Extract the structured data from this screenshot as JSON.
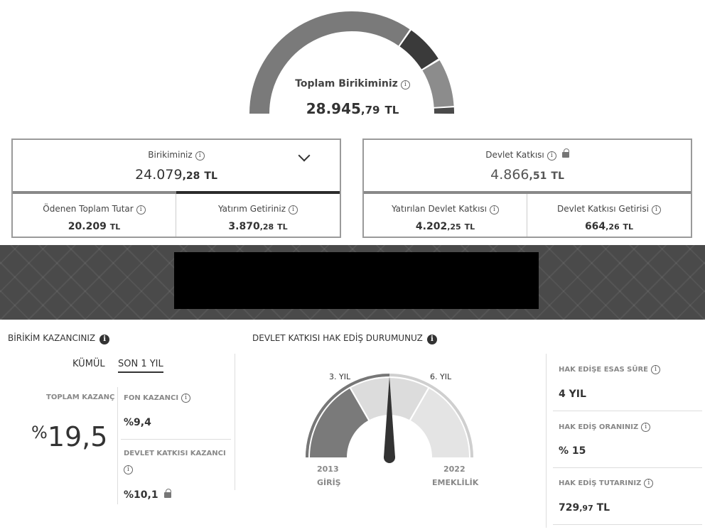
{
  "summary": {
    "total_label": "Toplam Birikiminiz",
    "total_int": "28.945",
    "total_dec": ",79",
    "currency": "TL",
    "gauge_segment_colors": [
      "#7a7a7a",
      "#3a3a3a",
      "#8c8c8c",
      "#4a4a4a"
    ]
  },
  "birikim_card": {
    "label": "Birikiminiz",
    "value_int": "24.079",
    "value_dec": ",28",
    "currency": "TL",
    "expand_icon": "chevron-down-icon",
    "left": {
      "label": "Ödenen Toplam Tutar",
      "value_int": "20.209",
      "value_dec": "",
      "currency": "TL"
    },
    "right": {
      "label": "Yatırım Getiriniz",
      "value_int": "3.870",
      "value_dec": ",28",
      "currency": "TL"
    }
  },
  "devlet_card": {
    "label": "Devlet Katkısı",
    "value_int": "4.866",
    "value_dec": ",51",
    "currency": "TL",
    "lock_icon": "lock-icon",
    "left": {
      "label": "Yatırılan Devlet Katkısı",
      "value_int": "4.202",
      "value_dec": ",25",
      "currency": "TL"
    },
    "right": {
      "label": "Devlet Katkısı Getirisi",
      "value_int": "664",
      "value_dec": ",26",
      "currency": "TL"
    }
  },
  "kazanc": {
    "title": "BİRİKİM KAZANCINIZ",
    "tab_cumulative": "KÜMÜL",
    "tab_last_year": "SON 1 YIL",
    "active_tab": "SON 1 YIL",
    "total_label": "TOPLAM KAZANÇ",
    "percent_symbol": "%",
    "total_value": "19,5",
    "fon_label": "FON KAZANCI",
    "fon_value": "%9,4",
    "devlet_label": "DEVLET KATKISI KAZANCI",
    "devlet_value": "%10,1"
  },
  "hak_edis": {
    "title": "DEVLET KATKISI HAK EDİŞ DURUMUNUZ",
    "mark_3": "3. YIL",
    "mark_6": "6. YIL",
    "start_year": "2013",
    "start_label": "GİRİŞ",
    "end_year": "2022",
    "end_label": "EMEKLİLİK",
    "needle_years_elapsed": 3,
    "years_total": 9,
    "sure_label": "HAK EDİŞE ESAS SÜRE",
    "sure_value": "4 YIL",
    "oran_label": "HAK EDİŞ ORANINIZ",
    "oran_value": "% 15",
    "tutar_label": "HAK EDİŞ TUTARINIZ",
    "tutar_int": "729",
    "tutar_dec": ",97",
    "tutar_currency": "TL"
  }
}
